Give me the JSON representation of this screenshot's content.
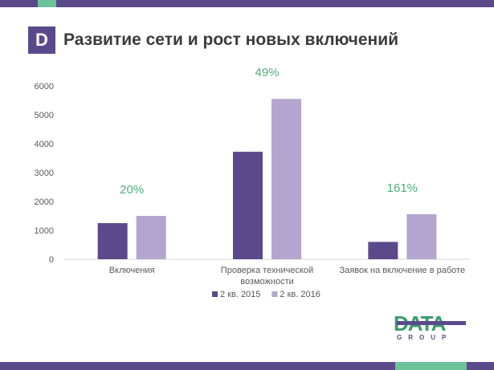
{
  "slide": {
    "logo_letter": "D",
    "title": "Развитие сети и рост новых включений"
  },
  "chart_data": {
    "type": "bar",
    "title": "Развитие сети и рост новых включений",
    "categories": [
      "Включения",
      [
        "Проверка технической",
        "возможности"
      ],
      "Заявок на включение в работе"
    ],
    "series": [
      {
        "name": "2 кв. 2015",
        "values": [
          1250,
          3720,
          600
        ]
      },
      {
        "name": "2 кв. 2016",
        "values": [
          1500,
          5550,
          1560
        ]
      }
    ],
    "growth_labels": [
      "20%",
      "49%",
      "161%"
    ],
    "ylim": [
      0,
      6000
    ],
    "yticks": [
      0,
      1000,
      2000,
      3000,
      4000,
      5000,
      6000
    ],
    "xlabel": "",
    "ylabel": "",
    "legend_position": "bottom",
    "colors": {
      "series": [
        "#5b4a8b",
        "#b3a5cf"
      ],
      "growth": "#4caf7d"
    }
  },
  "brand": {
    "word": "DATA",
    "sub": "GROUP"
  },
  "colors": {
    "frame": "#5a4a8a",
    "accent": "#6cc29a"
  }
}
